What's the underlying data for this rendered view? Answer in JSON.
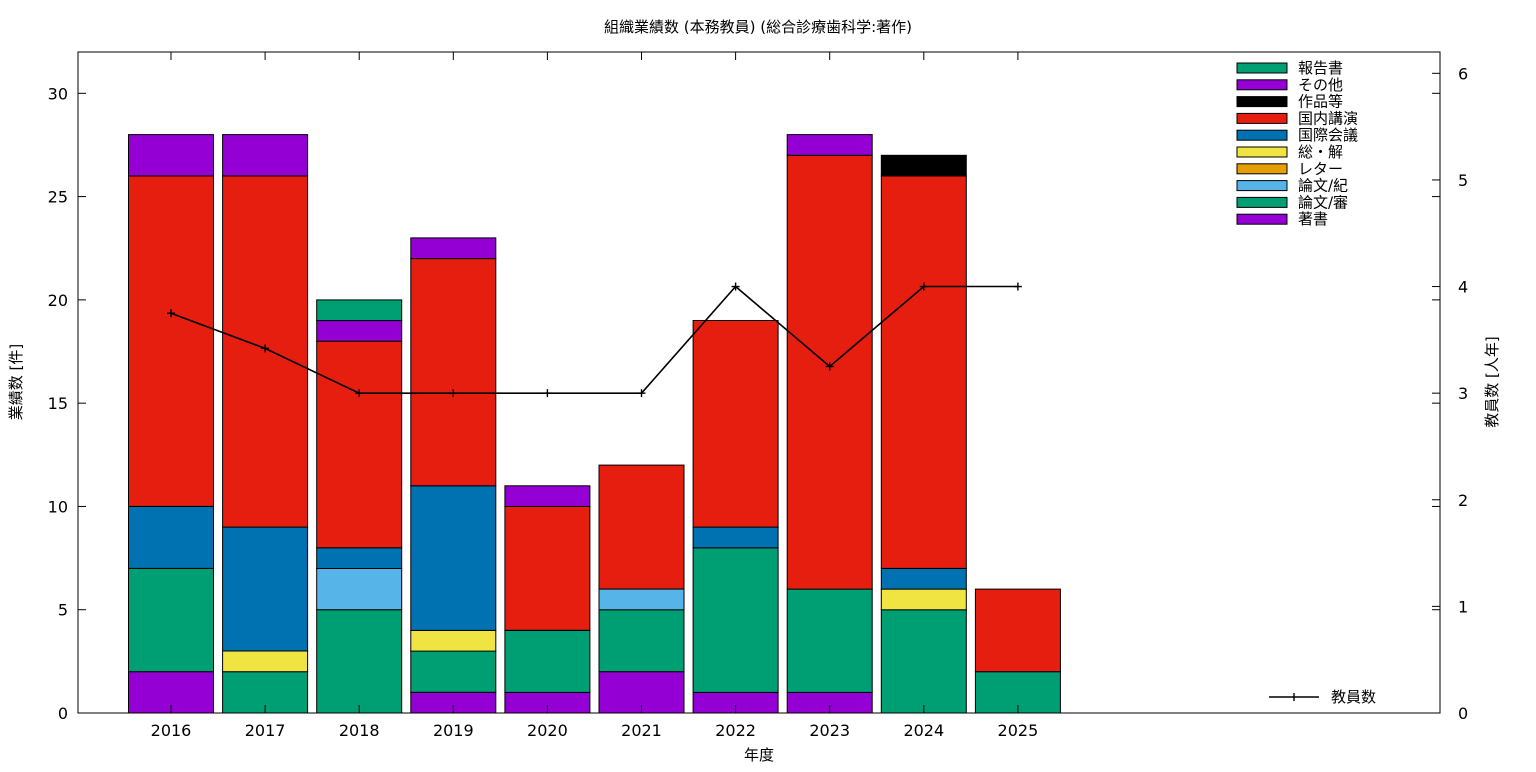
{
  "chart_data": {
    "type": "bar",
    "stacked": true,
    "title": "組織業績数 (本務教員) (総合診療歯科学:著作)",
    "xlabel": "年度",
    "ylabel": "業績数 [件]",
    "y2label": "教員数 [人年]",
    "ylim": [
      0,
      32
    ],
    "y2lim": [
      0,
      6.2
    ],
    "yticks": [
      0,
      5,
      10,
      15,
      20,
      25,
      30
    ],
    "y2ticks": [
      0,
      1,
      2,
      3,
      4,
      5,
      6
    ],
    "grid": false,
    "legend_position": "top-right",
    "categories": [
      "2016",
      "2017",
      "2018",
      "2019",
      "2020",
      "2021",
      "2022",
      "2023",
      "2024",
      "2025"
    ],
    "series": [
      {
        "name": "著書",
        "color": "#9400d3",
        "values": [
          2,
          0,
          0,
          1,
          1,
          2,
          1,
          1,
          0,
          0
        ]
      },
      {
        "name": "論文/審",
        "color": "#009e73",
        "values": [
          5,
          2,
          5,
          2,
          3,
          3,
          7,
          5,
          5,
          2
        ]
      },
      {
        "name": "論文/紀",
        "color": "#56b4e9",
        "values": [
          0,
          0,
          2,
          0,
          0,
          1,
          0,
          0,
          0,
          0
        ]
      },
      {
        "name": "レター",
        "color": "#e69f00",
        "values": [
          0,
          0,
          0,
          0,
          0,
          0,
          0,
          0,
          0,
          0
        ]
      },
      {
        "name": "総・解",
        "color": "#f0e442",
        "values": [
          0,
          1,
          0,
          1,
          0,
          0,
          0,
          0,
          1,
          0
        ]
      },
      {
        "name": "国際会議",
        "color": "#0072b2",
        "values": [
          3,
          6,
          1,
          7,
          0,
          0,
          1,
          0,
          1,
          0
        ]
      },
      {
        "name": "国内講演",
        "color": "#e51e10",
        "values": [
          16,
          17,
          10,
          11,
          6,
          6,
          10,
          21,
          19,
          4
        ]
      },
      {
        "name": "作品等",
        "color": "#000000",
        "values": [
          0,
          0,
          0,
          0,
          0,
          0,
          0,
          0,
          1,
          0
        ]
      },
      {
        "name": "その他",
        "color": "#9400d3",
        "values": [
          2,
          2,
          1,
          1,
          1,
          0,
          0,
          1,
          0,
          0
        ]
      },
      {
        "name": "報告書",
        "color": "#009e73",
        "values": [
          0,
          0,
          1,
          0,
          0,
          0,
          0,
          0,
          0,
          0
        ]
      }
    ],
    "line_series": {
      "name": "教員数",
      "color": "#000000",
      "axis": "right",
      "values": [
        3.75,
        3.42,
        3,
        3,
        3,
        3,
        4,
        3.25,
        4,
        4
      ]
    }
  }
}
